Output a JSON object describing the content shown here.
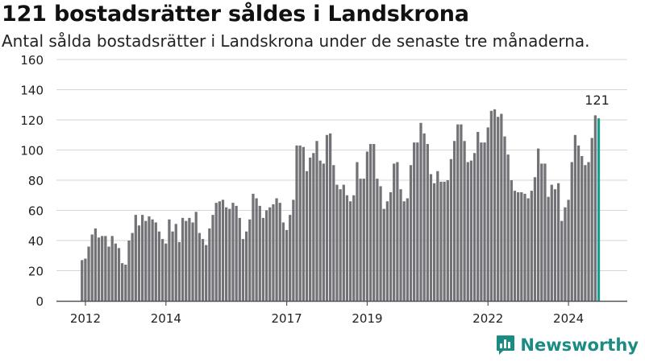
{
  "header": {
    "title": "121 bostadsrätter såldes i Landskrona",
    "subtitle": "Antal sålda bostadsrätter i Landskrona under de senaste tre månaderna."
  },
  "brand": {
    "name": "Newsworthy",
    "icon": "newsworthy-logo-icon"
  },
  "colors": {
    "bar": "#737277",
    "highlight": "#1b9e8e",
    "grid": "#d6d6d6",
    "brand": "#1b8c83"
  },
  "chart_data": {
    "type": "bar",
    "x_start": "2011-12",
    "x_step": "month",
    "xticks": [
      "2012",
      "2014",
      "2017",
      "2019",
      "2022",
      "2024"
    ],
    "yticks": [
      "0",
      "20",
      "40",
      "60",
      "80",
      "100",
      "120",
      "140",
      "160"
    ],
    "ylim": [
      0,
      160
    ],
    "grid": true,
    "highlight_label": "121",
    "values": [
      27,
      28,
      36,
      44,
      48,
      42,
      43,
      43,
      36,
      43,
      38,
      35,
      25,
      24,
      40,
      45,
      57,
      50,
      57,
      53,
      56,
      54,
      52,
      46,
      41,
      38,
      54,
      46,
      51,
      39,
      55,
      53,
      55,
      52,
      59,
      45,
      41,
      37,
      48,
      57,
      65,
      66,
      67,
      62,
      61,
      65,
      63,
      55,
      41,
      46,
      54,
      71,
      68,
      63,
      55,
      60,
      62,
      64,
      68,
      65,
      52,
      47,
      57,
      67,
      103,
      103,
      102,
      86,
      95,
      98,
      106,
      93,
      91,
      110,
      111,
      90,
      77,
      74,
      77,
      70,
      66,
      70,
      92,
      81,
      81,
      99,
      104,
      104,
      81,
      76,
      61,
      66,
      72,
      91,
      92,
      74,
      66,
      68,
      90,
      105,
      105,
      118,
      111,
      104,
      84,
      78,
      86,
      79,
      79,
      80,
      94,
      106,
      117,
      117,
      106,
      92,
      93,
      98,
      112,
      105,
      105,
      115,
      126,
      127,
      122,
      124,
      109,
      97,
      80,
      73,
      72,
      72,
      71,
      68,
      73,
      82,
      101,
      91,
      91,
      69,
      77,
      74,
      78,
      53,
      62,
      67,
      92,
      110,
      103,
      96,
      90,
      92,
      108,
      123,
      121
    ]
  }
}
